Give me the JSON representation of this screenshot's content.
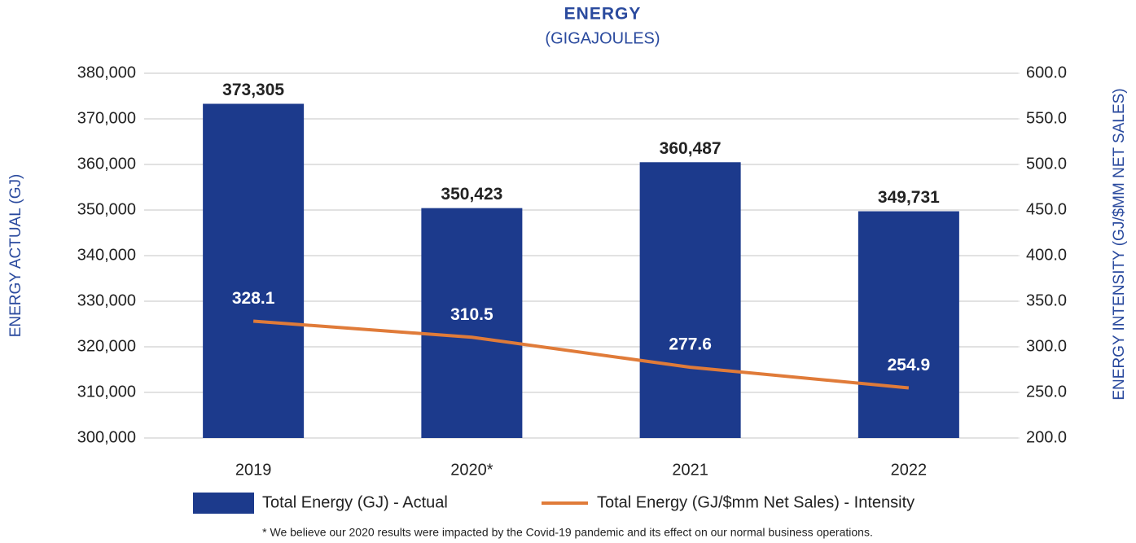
{
  "chart_data": {
    "type": "bar",
    "title": "ENERGY",
    "subtitle": "(GIGAJOULES)",
    "ylabel": "ENERGY ACTUAL (GJ)",
    "y2label": "ENERGY INTENSITY (GJ/$MM NET SALES)",
    "categories": [
      "2019",
      "2020*",
      "2021",
      "2022"
    ],
    "series": [
      {
        "name": "Total Energy (GJ) - Actual",
        "type": "bar",
        "color": "#1c3a8c",
        "values": [
          373305,
          350423,
          360487,
          349731
        ],
        "value_labels": [
          "373,305",
          "350,423",
          "360,487",
          "349,731"
        ]
      },
      {
        "name": "Total Energy (GJ/$mm Net Sales) - Intensity",
        "type": "line",
        "color": "#e07b39",
        "axis": "y2",
        "values": [
          328.1,
          310.5,
          277.6,
          254.9
        ]
      }
    ],
    "ylim": [
      300000,
      380000
    ],
    "yticks": [
      {
        "value": 300000,
        "label": "300,000"
      },
      {
        "value": 310000,
        "label": "310,000"
      },
      {
        "value": 320000,
        "label": "320,000"
      },
      {
        "value": 330000,
        "label": "330,000"
      },
      {
        "value": 340000,
        "label": "340,000"
      },
      {
        "value": 350000,
        "label": "350,000"
      },
      {
        "value": 360000,
        "label": "360,000"
      },
      {
        "value": 370000,
        "label": "370,000"
      },
      {
        "value": 380000,
        "label": "380,000"
      }
    ],
    "y2lim": [
      200,
      600
    ],
    "y2ticks": [
      {
        "value": 200,
        "label": "200.0"
      },
      {
        "value": 250,
        "label": "250.0"
      },
      {
        "value": 300,
        "label": "300.0"
      },
      {
        "value": 350,
        "label": "350.0"
      },
      {
        "value": 400,
        "label": "400.0"
      },
      {
        "value": 450,
        "label": "450.0"
      },
      {
        "value": 500,
        "label": "500.0"
      },
      {
        "value": 550,
        "label": "550.0"
      },
      {
        "value": 600,
        "label": "600.0"
      }
    ],
    "grid": true,
    "legend": "bottom",
    "footnote": "* We believe our 2020 results were impacted by the Covid-19 pandemic and its effect on our normal business operations."
  }
}
